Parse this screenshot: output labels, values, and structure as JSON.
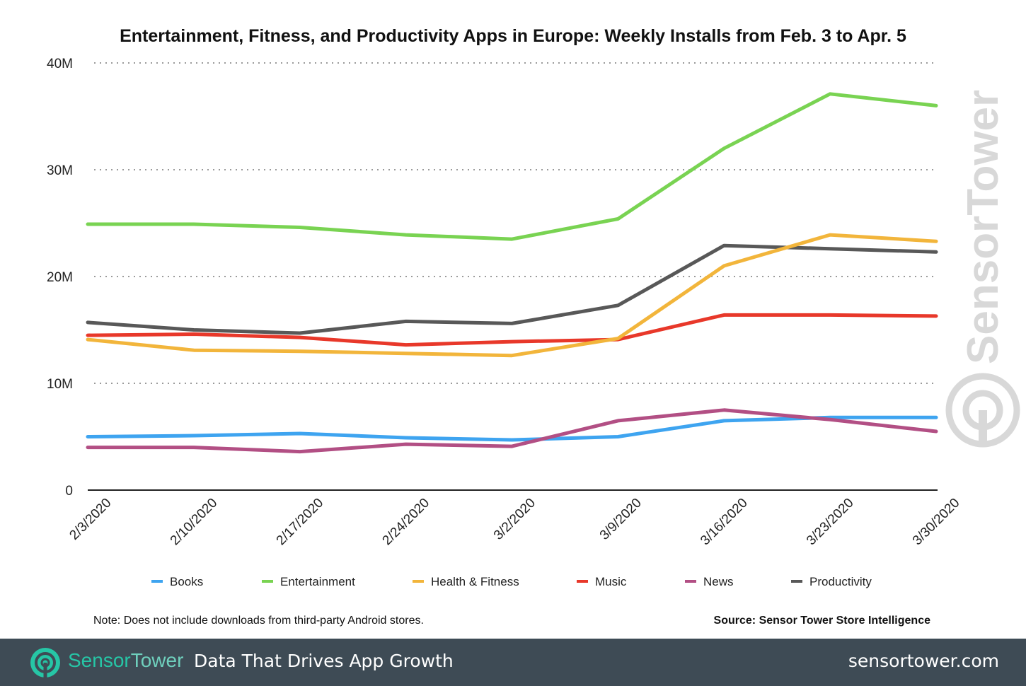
{
  "chart_data": {
    "type": "line",
    "title": "Entertainment, Fitness, and Productivity Apps in Europe: Weekly Installs from Feb. 3 to Apr. 5",
    "xlabel": "",
    "ylabel": "",
    "categories": [
      "2/3/2020",
      "2/10/2020",
      "2/17/2020",
      "2/24/2020",
      "3/2/2020",
      "3/9/2020",
      "3/16/2020",
      "3/23/2020",
      "3/30/2020"
    ],
    "ylim": [
      0,
      40000000
    ],
    "yticks": [
      0,
      10000000,
      20000000,
      30000000,
      40000000
    ],
    "ytick_labels": [
      "0",
      "10M",
      "20M",
      "30M",
      "40M"
    ],
    "grid": true,
    "legend_position": "bottom",
    "series": [
      {
        "name": "Books",
        "color": "#3ea4f0",
        "values": [
          5000000,
          5100000,
          5300000,
          4900000,
          4700000,
          5000000,
          6500000,
          6800000,
          6800000
        ]
      },
      {
        "name": "Entertainment",
        "color": "#79d352",
        "values": [
          24900000,
          24900000,
          24600000,
          23900000,
          23500000,
          25400000,
          32000000,
          37100000,
          36000000
        ]
      },
      {
        "name": "Health & Fitness",
        "color": "#f2b53b",
        "values": [
          14100000,
          13100000,
          13000000,
          12800000,
          12600000,
          14200000,
          21000000,
          23900000,
          23300000
        ]
      },
      {
        "name": "Music",
        "color": "#e8382a",
        "values": [
          14500000,
          14600000,
          14300000,
          13600000,
          13900000,
          14100000,
          16400000,
          16400000,
          16300000
        ]
      },
      {
        "name": "News",
        "color": "#b24f84",
        "values": [
          4000000,
          4000000,
          3600000,
          4300000,
          4100000,
          6500000,
          7500000,
          6600000,
          5500000
        ]
      },
      {
        "name": "Productivity",
        "color": "#585858",
        "values": [
          15700000,
          15000000,
          14700000,
          15800000,
          15600000,
          17300000,
          22900000,
          22600000,
          22300000
        ]
      }
    ],
    "note": "Note: Does not include downloads from third-party Android stores.",
    "source": "Source: Sensor Tower Store Intelligence",
    "watermark": "SensorTower"
  },
  "footer": {
    "brand_part1": "Sensor",
    "brand_part2": "Tower",
    "tagline": "Data That Drives App Growth",
    "url": "sensortower.com",
    "logo_icon": "sensortower-logo-icon"
  }
}
